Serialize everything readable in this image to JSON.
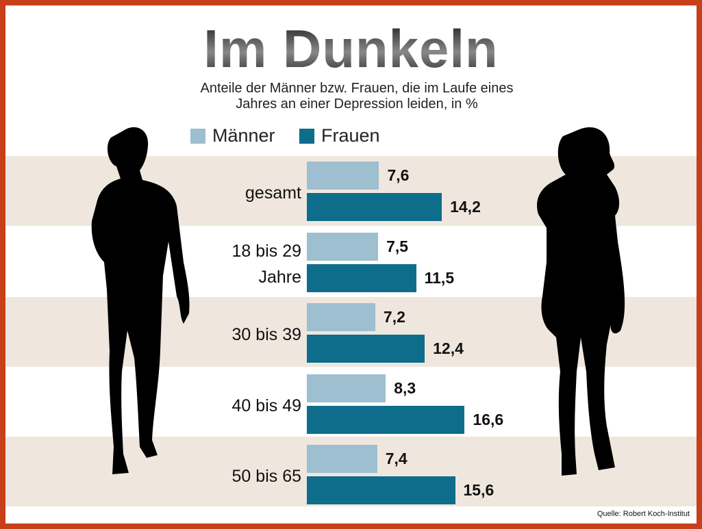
{
  "chart_data": {
    "type": "bar",
    "orientation": "horizontal",
    "title": "Im Dunkeln",
    "subtitle": "Anteile der Männer bzw. Frauen, die im Laufe eines Jahres an einer Depression leiden, in %",
    "categories": [
      "gesamt",
      "18 bis 29 Jahre",
      "30 bis 39",
      "40 bis 49",
      "50 bis 65"
    ],
    "series": [
      {
        "name": "Männer",
        "color": "#9dbfd0",
        "values": [
          7.6,
          7.5,
          7.2,
          8.3,
          7.4
        ],
        "value_labels": [
          "7,6",
          "7,5",
          "7,2",
          "8,3",
          "7,4"
        ]
      },
      {
        "name": "Frauen",
        "color": "#0f6d8c",
        "values": [
          14.2,
          11.5,
          12.4,
          16.6,
          15.6
        ],
        "value_labels": [
          "14,2",
          "11,5",
          "12,4",
          "16,6",
          "15,6"
        ]
      }
    ],
    "source": "Quelle: Robert Koch-Institut"
  }
}
